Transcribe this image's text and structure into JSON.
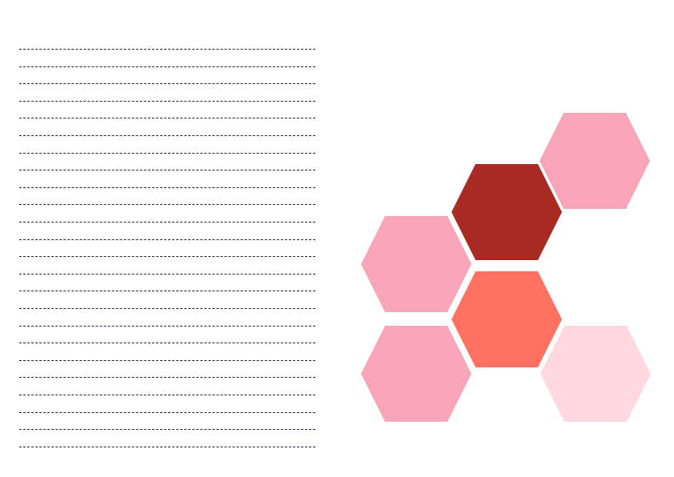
{
  "page": {
    "background": "#ffffff",
    "rule_color": "#1e2240",
    "rule_count": 24,
    "rule_style": "dashed"
  },
  "decoration": {
    "shape": "hexagon",
    "hexagons": [
      {
        "name": "hexagon-top-right",
        "color": "#f8a5b9"
      },
      {
        "name": "hexagon-dark-red",
        "color": "#a82a22"
      },
      {
        "name": "hexagon-middle-left",
        "color": "#f8a5b9"
      },
      {
        "name": "hexagon-coral",
        "color": "#ff7262"
      },
      {
        "name": "hexagon-bottom-left",
        "color": "#f8a5b9"
      },
      {
        "name": "hexagon-bottom-right",
        "color": "#ffd8e1"
      }
    ]
  }
}
